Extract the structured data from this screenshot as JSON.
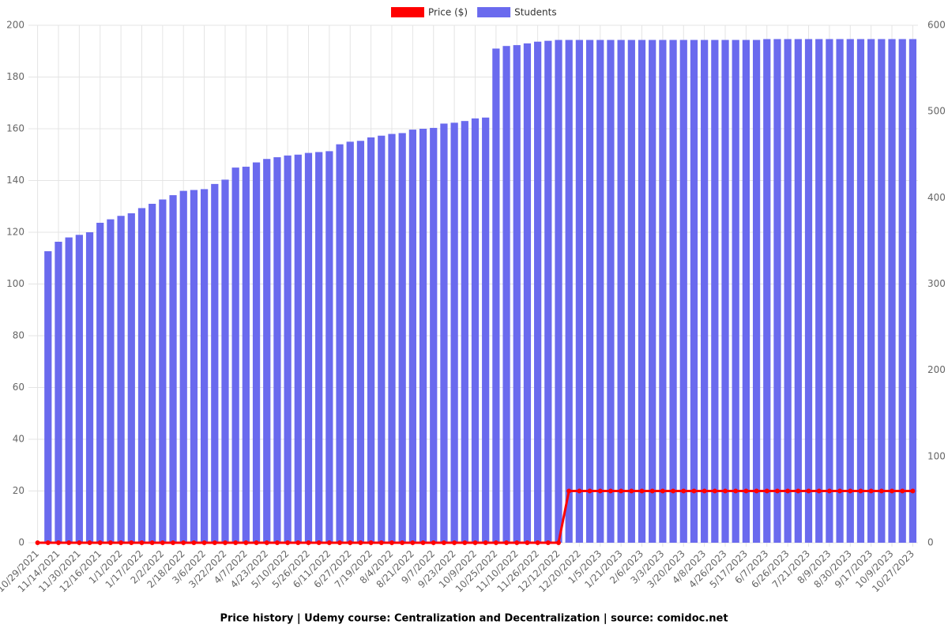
{
  "chart_data": {
    "type": "bar-line",
    "title": "Price history | Udemy course: Centralization and Decentralization | source: comidoc.net",
    "categories": [
      "10/29/2021",
      null,
      "11/14/2021",
      null,
      "11/30/2021",
      null,
      "12/16/2021",
      null,
      "1/1/2022",
      null,
      "1/17/2022",
      null,
      "2/2/2022",
      null,
      "2/18/2022",
      null,
      "3/6/2022",
      null,
      "3/22/2022",
      null,
      "4/7/2022",
      null,
      "4/23/2022",
      null,
      "5/10/2022",
      null,
      "5/26/2022",
      null,
      "6/11/2022",
      null,
      "6/27/2022",
      null,
      "7/19/2022",
      null,
      "8/4/2022",
      null,
      "8/21/2022",
      null,
      "9/7/2022",
      null,
      "9/23/2022",
      null,
      "10/9/2022",
      null,
      "10/25/2022",
      null,
      "11/10/2022",
      null,
      "11/26/2022",
      null,
      "12/12/2022",
      null,
      "12/20/2022",
      null,
      "1/5/2023",
      null,
      "1/21/2023",
      null,
      "2/6/2023",
      null,
      "3/3/2023",
      null,
      "3/20/2023",
      null,
      "4/8/2023",
      null,
      "4/26/2023",
      null,
      "5/17/2023",
      null,
      "6/7/2023",
      null,
      "6/26/2023",
      null,
      "7/21/2023",
      null,
      "8/9/2023",
      null,
      "8/30/2023",
      null,
      "9/17/2023",
      null,
      "10/9/2023",
      null,
      "10/27/2023"
    ],
    "series": [
      {
        "name": "Price ($)",
        "color": "#ff0000",
        "axis": "y",
        "kind": "line",
        "values": [
          0,
          0,
          0,
          0,
          0,
          0,
          0,
          0,
          0,
          0,
          0,
          0,
          0,
          0,
          0,
          0,
          0,
          0,
          0,
          0,
          0,
          0,
          0,
          0,
          0,
          0,
          0,
          0,
          0,
          0,
          0,
          0,
          0,
          0,
          0,
          0,
          0,
          0,
          0,
          0,
          0,
          0,
          0,
          0,
          0,
          0,
          0,
          0,
          0,
          0,
          0,
          20,
          20,
          20,
          20,
          20,
          20,
          20,
          20,
          20,
          20,
          20,
          20,
          20,
          20,
          20,
          20,
          20,
          20,
          20,
          20,
          20,
          20,
          20,
          20,
          20,
          20,
          20,
          20,
          20,
          20,
          20,
          20,
          20,
          20
        ]
      },
      {
        "name": "Students",
        "color": "#6a6aee",
        "axis": "y2",
        "kind": "bar",
        "values": [
          null,
          338,
          349,
          354,
          357,
          360,
          371,
          375,
          379,
          382,
          388,
          393,
          398,
          403,
          408,
          409,
          410,
          416,
          421,
          435,
          436,
          441,
          445,
          447,
          449,
          450,
          452,
          453,
          454,
          462,
          465,
          466,
          470,
          472,
          474,
          475,
          479,
          480,
          481,
          486,
          487,
          489,
          492,
          493,
          573,
          576,
          577,
          579,
          581,
          582,
          583,
          583,
          583,
          583,
          583,
          583,
          583,
          583,
          583,
          583,
          583,
          583,
          583,
          583,
          583,
          583,
          583,
          583,
          583,
          583,
          584,
          584,
          584,
          584,
          584,
          584,
          584,
          584,
          584,
          584,
          584,
          584,
          584,
          584,
          584
        ]
      }
    ],
    "ylim": [
      0,
      200
    ],
    "yticks": [
      0,
      20,
      40,
      60,
      80,
      100,
      120,
      140,
      160,
      180,
      200
    ],
    "y2lim": [
      0,
      600
    ],
    "y2ticks": [
      0,
      100,
      200,
      300,
      400,
      500,
      600
    ],
    "grid": true,
    "legend": "top"
  }
}
